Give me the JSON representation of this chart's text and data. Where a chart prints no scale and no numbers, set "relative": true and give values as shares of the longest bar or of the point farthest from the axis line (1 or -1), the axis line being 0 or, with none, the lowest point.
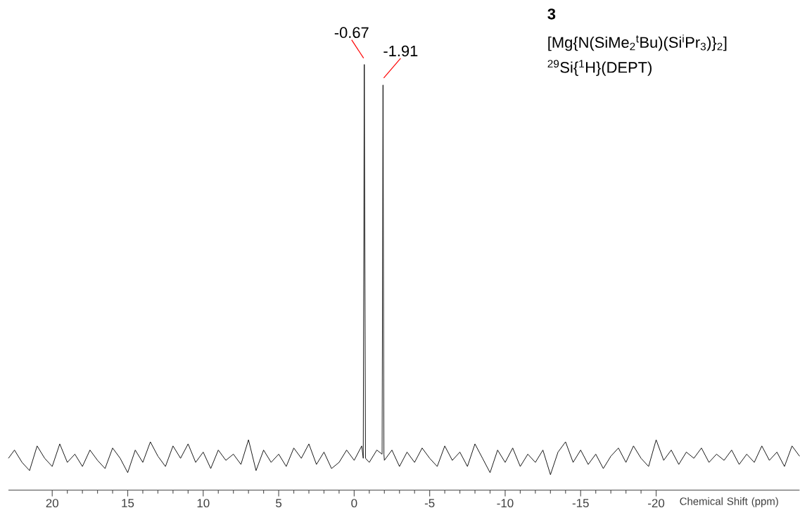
{
  "chart_data": {
    "type": "line",
    "title": "3",
    "subtitle": "[Mg{N(SiMe$_{2}$$^{t}$Bu)(Si$^{i}$Pr$_{3}$)}$_{2}$]",
    "xlabel": "Chemical Shift (ppm)",
    "relative": true,
    "xlim": [
      22.9,
      -29.5
    ],
    "xticks": [
      20,
      15,
      10,
      5,
      0,
      -5,
      -10,
      -15,
      -20
    ],
    "annotations": [
      {
        "text": "-0.67",
        "x": -0.67,
        "y": 1
      },
      {
        "text": "-1.91",
        "x": -1.91,
        "y": 0.95
      },
      "$^{29}$Si{$^{1}$H}(DEPT)"
    ],
    "series": [
      {
        "color": "#000000",
        "x": [
          22.9,
          22.5,
          22.0,
          21.5,
          21.0,
          20.5,
          20.0,
          19.5,
          19.0,
          18.5,
          18.0,
          17.5,
          17.0,
          16.5,
          16.0,
          15.5,
          15.0,
          14.5,
          14.0,
          13.5,
          13.0,
          12.5,
          12.0,
          11.5,
          11.0,
          10.5,
          10.0,
          9.5,
          9.0,
          8.5,
          8.0,
          7.5,
          7.0,
          6.5,
          6.0,
          5.5,
          5.0,
          4.5,
          4.0,
          3.5,
          3.0,
          2.5,
          2.0,
          1.5,
          1.0,
          0.5,
          0.0,
          -0.5,
          -0.6,
          -0.67,
          -0.75,
          -1.0,
          -1.5,
          -1.85,
          -1.91,
          -1.97,
          -2.0,
          -2.5,
          -3.0,
          -3.5,
          -4.0,
          -4.5,
          -5.0,
          -5.5,
          -6.0,
          -6.5,
          -7.0,
          -7.5,
          -8.0,
          -8.5,
          -9.0,
          -9.5,
          -10.0,
          -10.5,
          -11.0,
          -11.5,
          -12.0,
          -12.5,
          -13.0,
          -13.5,
          -14.0,
          -14.5,
          -15.0,
          -15.5,
          -16.0,
          -16.5,
          -17.0,
          -17.5,
          -18.0,
          -18.5,
          -19.0,
          -19.5,
          -20.0,
          -20.5,
          -21.0,
          -21.5,
          -22.0,
          -22.5,
          -23.0,
          -23.5,
          -24.0,
          -24.5,
          -25.0,
          -25.5,
          -26.0,
          -26.5,
          -27.0,
          -27.5,
          -28.0,
          -28.5,
          -29.0,
          -29.5
        ],
        "values": [
          0.04,
          0.06,
          0.03,
          0.01,
          0.07,
          0.04,
          0.02,
          0.075,
          0.03,
          0.05,
          0.02,
          0.06,
          0.035,
          0.015,
          0.065,
          0.04,
          0.005,
          0.06,
          0.03,
          0.08,
          0.045,
          0.02,
          0.07,
          0.04,
          0.075,
          0.03,
          0.055,
          0.015,
          0.06,
          0.035,
          0.05,
          0.025,
          0.085,
          0.01,
          0.06,
          0.03,
          0.05,
          0.02,
          0.065,
          0.04,
          0.075,
          0.025,
          0.055,
          0.015,
          0.03,
          0.06,
          0.035,
          0.07,
          0.04,
          1,
          0.04,
          0.03,
          0.06,
          0.05,
          0.95,
          0.05,
          0.035,
          0.06,
          0.02,
          0.055,
          0.03,
          0.065,
          0.04,
          0.02,
          0.07,
          0.035,
          0.055,
          0.02,
          0.075,
          0.04,
          0.005,
          0.06,
          0.03,
          0.065,
          0.02,
          0.05,
          0.03,
          0.06,
          0.0,
          0.055,
          0.08,
          0.03,
          0.06,
          0.025,
          0.05,
          0.015,
          0.045,
          0.065,
          0.03,
          0.07,
          0.04,
          0.02,
          0.085,
          0.035,
          0.06,
          0.025,
          0.055,
          0.04,
          0.065,
          0.03,
          0.05,
          0.035,
          0.06,
          0.025,
          0.05,
          0.03,
          0.07,
          0.035,
          0.055,
          0.02,
          0.07,
          0.045
        ]
      }
    ]
  }
}
